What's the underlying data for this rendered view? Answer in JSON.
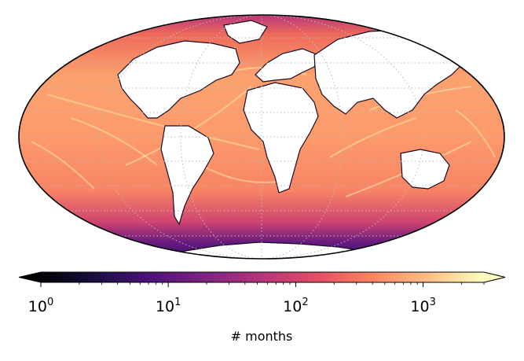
{
  "chart_data": {
    "type": "heatmap",
    "projection": "Mollweide",
    "colormap": "magma",
    "colorbar": {
      "orientation": "horizontal",
      "scale": "log",
      "range": [
        1,
        3000
      ],
      "extend": "both",
      "label": "# months",
      "ticks": [
        {
          "base": "10",
          "exp": "0"
        },
        {
          "base": "10",
          "exp": "1"
        },
        {
          "base": "10",
          "exp": "2"
        },
        {
          "base": "10",
          "exp": "3"
        }
      ]
    },
    "graticule": "dotted",
    "land_color": "#ffffff",
    "coastline_color": "#000000"
  }
}
